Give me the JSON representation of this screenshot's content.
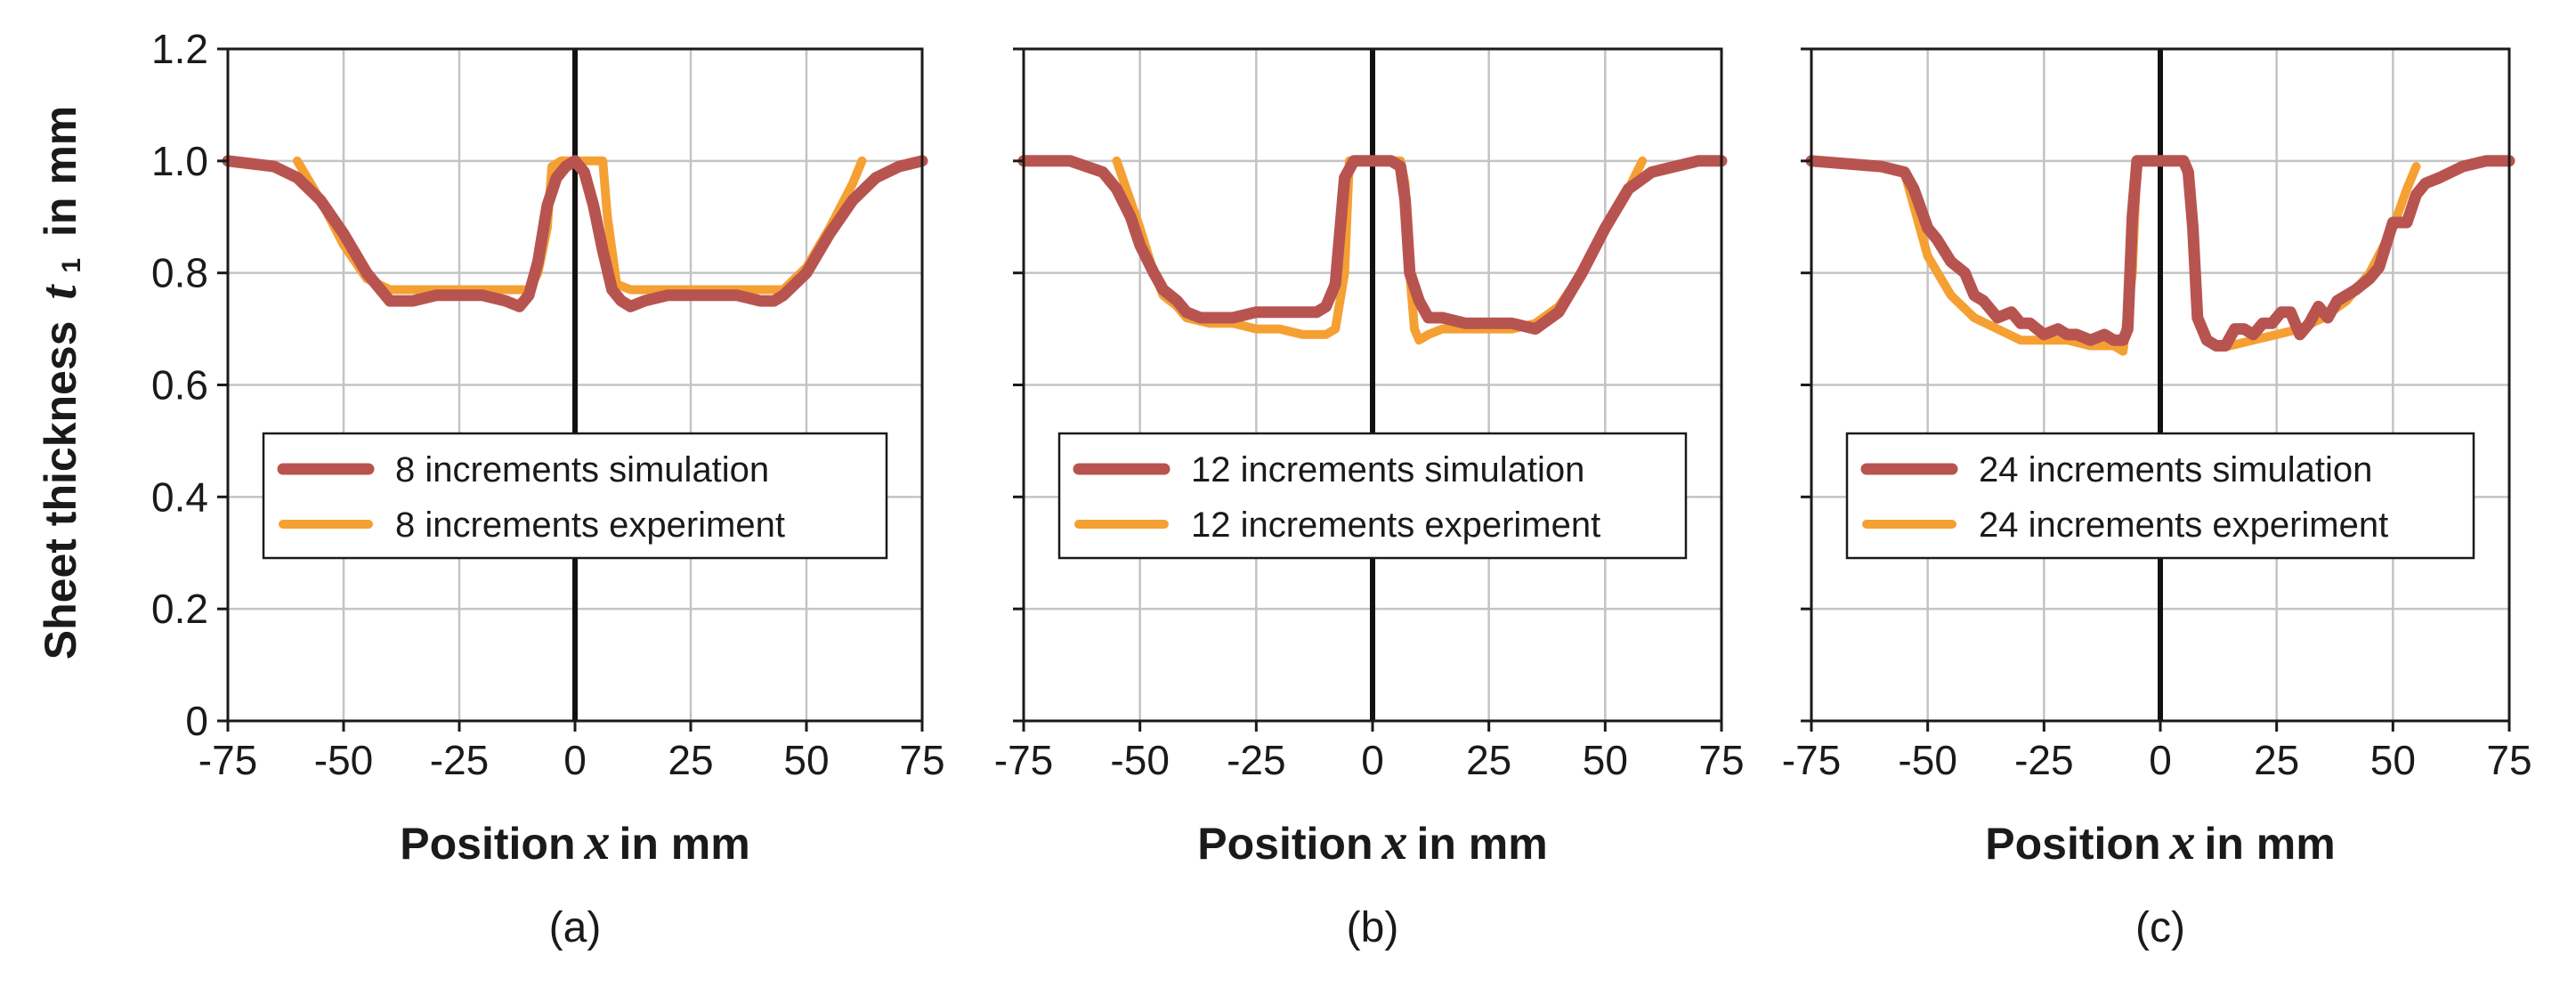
{
  "ylabel": {
    "prefix": "Sheet thickness",
    "variable": "t",
    "subscript": "1",
    "suffix": "in mm"
  },
  "xlabel": {
    "prefix": "Position",
    "variable": "x",
    "suffix": "in mm"
  },
  "colors": {
    "simulation": "#b85450",
    "experiment": "#f5a033",
    "grid": "#c4c4c4",
    "frame": "#1a1a1a",
    "zero_line": "#111111"
  },
  "chart_data": [
    {
      "type": "line",
      "panel_label": "(a)",
      "xlim": [
        -75,
        75
      ],
      "ylim": [
        0,
        1.2
      ],
      "xticks": [
        "-75",
        "-50",
        "-25",
        "0",
        "25",
        "50",
        "75"
      ],
      "yticks": [
        "0",
        "0.2",
        "0.4",
        "0.6",
        "0.8",
        "1.0",
        "1.2"
      ],
      "grid": true,
      "legend_position": "center",
      "series": [
        {
          "name": "8 increments simulation",
          "role": "simulation",
          "x": [
            -75,
            -65,
            -60,
            -55,
            -50,
            -45,
            -42,
            -40,
            -35,
            -30,
            -25,
            -20,
            -15,
            -12,
            -10,
            -8,
            -6,
            -4,
            -2,
            0,
            2,
            4,
            6,
            8,
            10,
            12,
            15,
            20,
            25,
            30,
            35,
            40,
            43,
            45,
            50,
            55,
            60,
            65,
            70,
            75
          ],
          "y": [
            1.0,
            0.99,
            0.97,
            0.93,
            0.87,
            0.8,
            0.77,
            0.75,
            0.75,
            0.76,
            0.76,
            0.76,
            0.75,
            0.74,
            0.76,
            0.82,
            0.92,
            0.97,
            0.99,
            1.0,
            0.98,
            0.92,
            0.84,
            0.77,
            0.75,
            0.74,
            0.75,
            0.76,
            0.76,
            0.76,
            0.76,
            0.75,
            0.75,
            0.76,
            0.8,
            0.87,
            0.93,
            0.97,
            0.99,
            1.0
          ]
        },
        {
          "name": "8 increments experiment",
          "role": "experiment",
          "x": [
            -60,
            -55,
            -50,
            -45,
            -40,
            -35,
            -30,
            -25,
            -20,
            -15,
            -10,
            -8,
            -6,
            -5,
            -3,
            0,
            3,
            5,
            6,
            7,
            9,
            12,
            15,
            20,
            25,
            30,
            35,
            40,
            45,
            50,
            55,
            60,
            62
          ],
          "y": [
            1.0,
            0.93,
            0.85,
            0.79,
            0.77,
            0.77,
            0.77,
            0.77,
            0.77,
            0.77,
            0.77,
            0.8,
            0.88,
            0.99,
            1.0,
            1.0,
            1.0,
            1.0,
            1.0,
            0.9,
            0.78,
            0.77,
            0.77,
            0.77,
            0.77,
            0.77,
            0.77,
            0.77,
            0.77,
            0.81,
            0.88,
            0.96,
            1.0
          ]
        }
      ]
    },
    {
      "type": "line",
      "panel_label": "(b)",
      "xlim": [
        -75,
        75
      ],
      "ylim": [
        0,
        1.2
      ],
      "xticks": [
        "-75",
        "-50",
        "-25",
        "0",
        "25",
        "50",
        "75"
      ],
      "yticks": [
        "0",
        "0.2",
        "0.4",
        "0.6",
        "0.8",
        "1.0",
        "1.2"
      ],
      "grid": true,
      "legend_position": "center",
      "series": [
        {
          "name": "12 increments simulation",
          "role": "simulation",
          "x": [
            -75,
            -65,
            -58,
            -55,
            -52,
            -50,
            -47,
            -45,
            -42,
            -40,
            -37,
            -35,
            -30,
            -25,
            -20,
            -15,
            -12,
            -10,
            -8,
            -6,
            -4,
            -2,
            0,
            2,
            4,
            6,
            7,
            8,
            10,
            12,
            15,
            20,
            25,
            30,
            35,
            40,
            45,
            50,
            55,
            60,
            65,
            70,
            75
          ],
          "y": [
            1.0,
            1.0,
            0.98,
            0.95,
            0.9,
            0.85,
            0.8,
            0.77,
            0.75,
            0.73,
            0.72,
            0.72,
            0.72,
            0.73,
            0.73,
            0.73,
            0.73,
            0.74,
            0.78,
            0.97,
            1.0,
            1.0,
            1.0,
            1.0,
            1.0,
            0.99,
            0.93,
            0.8,
            0.75,
            0.72,
            0.72,
            0.71,
            0.71,
            0.71,
            0.7,
            0.73,
            0.8,
            0.88,
            0.95,
            0.98,
            0.99,
            1.0,
            1.0
          ]
        },
        {
          "name": "12 increments experiment",
          "role": "experiment",
          "x": [
            -55,
            -50,
            -47,
            -45,
            -42,
            -40,
            -35,
            -30,
            -25,
            -20,
            -15,
            -10,
            -8,
            -6,
            -5,
            -3,
            0,
            3,
            6,
            7,
            8,
            9,
            10,
            12,
            15,
            20,
            25,
            30,
            35,
            40,
            45,
            50,
            55,
            58
          ],
          "y": [
            1.0,
            0.88,
            0.8,
            0.76,
            0.74,
            0.72,
            0.71,
            0.71,
            0.7,
            0.7,
            0.69,
            0.69,
            0.7,
            0.8,
            1.0,
            1.0,
            1.0,
            1.0,
            1.0,
            0.96,
            0.8,
            0.7,
            0.68,
            0.69,
            0.7,
            0.7,
            0.7,
            0.7,
            0.71,
            0.74,
            0.8,
            0.88,
            0.95,
            1.0
          ]
        }
      ]
    },
    {
      "type": "line",
      "panel_label": "(c)",
      "xlim": [
        -75,
        75
      ],
      "ylim": [
        0,
        1.2
      ],
      "xticks": [
        "-75",
        "-50",
        "-25",
        "0",
        "25",
        "50",
        "75"
      ],
      "yticks": [
        "0",
        "0.2",
        "0.4",
        "0.6",
        "0.8",
        "1.0",
        "1.2"
      ],
      "grid": true,
      "legend_position": "center",
      "series": [
        {
          "name": "24 increments simulation",
          "role": "simulation",
          "x": [
            -75,
            -60,
            -55,
            -53,
            -50,
            -48,
            -45,
            -42,
            -40,
            -38,
            -35,
            -32,
            -30,
            -28,
            -25,
            -22,
            -20,
            -18,
            -15,
            -12,
            -10,
            -8,
            -7,
            -6,
            -5,
            -3,
            0,
            3,
            5,
            6,
            7,
            8,
            10,
            12,
            14,
            16,
            18,
            20,
            22,
            24,
            26,
            28,
            30,
            32,
            34,
            36,
            38,
            40,
            42,
            45,
            47,
            50,
            53,
            55,
            57,
            60,
            65,
            70,
            75
          ],
          "y": [
            1.0,
            0.99,
            0.98,
            0.95,
            0.88,
            0.86,
            0.82,
            0.8,
            0.76,
            0.75,
            0.72,
            0.73,
            0.71,
            0.71,
            0.69,
            0.7,
            0.69,
            0.69,
            0.68,
            0.69,
            0.68,
            0.68,
            0.7,
            0.9,
            1.0,
            1.0,
            1.0,
            1.0,
            1.0,
            0.98,
            0.88,
            0.72,
            0.68,
            0.67,
            0.67,
            0.7,
            0.7,
            0.69,
            0.71,
            0.71,
            0.73,
            0.73,
            0.69,
            0.71,
            0.74,
            0.72,
            0.75,
            0.76,
            0.77,
            0.79,
            0.81,
            0.89,
            0.89,
            0.94,
            0.96,
            0.97,
            0.99,
            1.0,
            1.0
          ]
        },
        {
          "name": "24 increments experiment",
          "role": "experiment",
          "x": [
            -55,
            -50,
            -45,
            -40,
            -35,
            -30,
            -25,
            -20,
            -15,
            -10,
            -8,
            -6,
            -5,
            -3,
            0,
            3,
            5,
            6,
            7,
            8,
            10,
            12,
            15,
            20,
            25,
            30,
            35,
            40,
            45,
            50,
            53,
            55
          ],
          "y": [
            0.98,
            0.83,
            0.76,
            0.72,
            0.7,
            0.68,
            0.68,
            0.68,
            0.67,
            0.67,
            0.66,
            0.8,
            1.0,
            1.0,
            1.0,
            1.0,
            1.0,
            0.98,
            0.88,
            0.72,
            0.68,
            0.67,
            0.67,
            0.68,
            0.69,
            0.7,
            0.72,
            0.75,
            0.8,
            0.88,
            0.95,
            0.99
          ]
        }
      ]
    }
  ]
}
